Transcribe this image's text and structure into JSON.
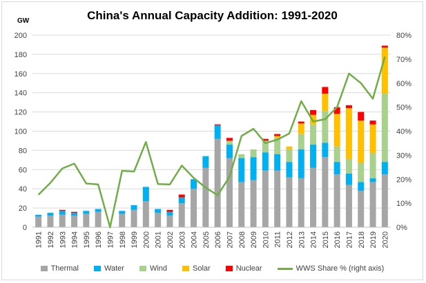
{
  "chart_data": {
    "type": "bar",
    "stacked": true,
    "title": "China's Annual Capacity Addition: 1991-2020",
    "ylabel": "GW",
    "ylim": [
      0,
      200
    ],
    "yticks": [
      "0",
      "20",
      "40",
      "60",
      "80",
      "100",
      "120",
      "140",
      "160",
      "180",
      "200"
    ],
    "y2lim": [
      0,
      80
    ],
    "y2ticks": [
      "0%",
      "10%",
      "20%",
      "30%",
      "40%",
      "50%",
      "60%",
      "70%",
      "80%"
    ],
    "grid": true,
    "legend_position": "bottom",
    "categories": [
      "1991",
      "1992",
      "1993",
      "1994",
      "1995",
      "1996",
      "1997",
      "1998",
      "1999",
      "2000",
      "2001",
      "2002",
      "2003",
      "2004",
      "2005",
      "2006",
      "2007",
      "2008",
      "2009",
      "2010",
      "2011",
      "2012",
      "2013",
      "2014",
      "2015",
      "2016",
      "2017",
      "2018",
      "2019",
      "2020"
    ],
    "series": [
      {
        "name": "Thermal",
        "color": "#a6a6a6",
        "values": [
          11,
          12,
          13,
          12,
          14,
          16,
          0,
          14,
          18,
          27,
          15,
          12,
          25,
          40,
          62,
          92,
          72,
          47,
          49,
          59,
          59,
          52,
          51,
          62,
          73,
          55,
          44,
          38,
          47,
          55
        ]
      },
      {
        "name": "Water",
        "color": "#00b0f0",
        "values": [
          2,
          3,
          4,
          3,
          3,
          3,
          0,
          3,
          5,
          15,
          4,
          4,
          6,
          10,
          12,
          14,
          14,
          25,
          24,
          19,
          17,
          16,
          30,
          24,
          15,
          13,
          12,
          9,
          4,
          13
        ]
      },
      {
        "name": "Wind",
        "color": "#a9d18e",
        "values": [
          0,
          0,
          0,
          0,
          0,
          0,
          0,
          0,
          0,
          0,
          0,
          0,
          0,
          0,
          0,
          0,
          4,
          4,
          8,
          12,
          17,
          13,
          16,
          21,
          33,
          16,
          15,
          20,
          26,
          71
        ]
      },
      {
        "name": "Solar",
        "color": "#ffc000",
        "values": [
          0,
          0,
          0,
          0,
          0,
          0,
          0,
          0,
          0,
          0,
          0,
          0,
          0,
          0,
          0,
          0,
          0,
          0,
          0,
          0,
          2,
          3,
          11,
          10,
          18,
          34,
          53,
          44,
          30,
          48
        ]
      },
      {
        "name": "Nuclear",
        "color": "#ff0000",
        "values": [
          0,
          0,
          1,
          1,
          0,
          0,
          0,
          0,
          0,
          0,
          0,
          2,
          3,
          0,
          0,
          1,
          3,
          0,
          0,
          2,
          2,
          0,
          2,
          5,
          7,
          7,
          3,
          9,
          4,
          2
        ]
      }
    ],
    "line_series": {
      "name": "WWS Share % (right axis)",
      "color": "#70ad47",
      "axis": "right",
      "values": [
        13.5,
        18.5,
        24.5,
        26.5,
        18.2,
        17.8,
        0,
        23.5,
        23.2,
        35.5,
        18.0,
        17.8,
        25.7,
        20.5,
        16.5,
        13.3,
        21.0,
        38.0,
        41.0,
        35.0,
        36.5,
        39.0,
        52.5,
        44.0,
        45.0,
        50.0,
        64.0,
        60.0,
        53.5,
        71.0
      ]
    }
  }
}
